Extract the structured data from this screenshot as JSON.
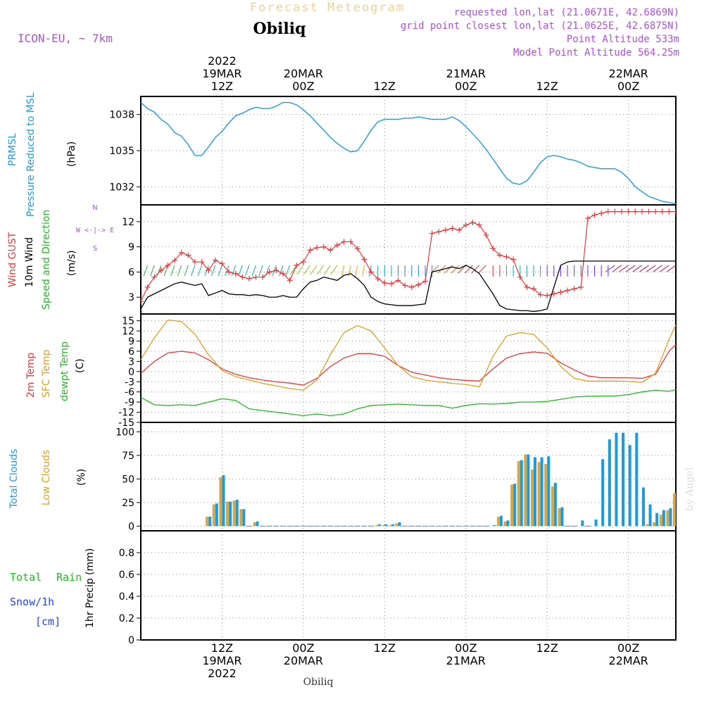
{
  "header": {
    "title": "Forecast Meteogram",
    "station": "Obiliq",
    "model": "ICON-EU, ~ 7km",
    "requested": "requested lon,lat (21.0671E, 42.6869N)",
    "grid_point": "grid point closest lon,lat (21.0625E, 42.6875N)",
    "point_alt": "Point Altitude 533m",
    "model_alt": "Model Point Altitude 564.25m",
    "watermark": "by Angel",
    "footer_station": "Obiliq"
  },
  "time_axis": {
    "top_labels": [
      {
        "hour": 12,
        "lines": [
          "2022",
          "19MAR",
          "12Z"
        ]
      },
      {
        "hour": 24,
        "lines": [
          "20MAR",
          "00Z"
        ]
      },
      {
        "hour": 36,
        "lines": [
          "12Z"
        ]
      },
      {
        "hour": 48,
        "lines": [
          "21MAR",
          "00Z"
        ]
      },
      {
        "hour": 60,
        "lines": [
          "12Z"
        ]
      },
      {
        "hour": 72,
        "lines": [
          "22MAR",
          "00Z"
        ]
      }
    ],
    "bottom_labels": [
      {
        "hour": 12,
        "lines": [
          "12Z",
          "19MAR",
          "2022"
        ]
      },
      {
        "hour": 24,
        "lines": [
          "00Z",
          "20MAR"
        ]
      },
      {
        "hour": 36,
        "lines": [
          "12Z"
        ]
      },
      {
        "hour": 48,
        "lines": [
          "00Z",
          "21MAR"
        ]
      },
      {
        "hour": 60,
        "lines": [
          "12Z"
        ]
      },
      {
        "hour": 72,
        "lines": [
          "00Z",
          "22MAR"
        ]
      }
    ]
  },
  "panel_labels": {
    "pressure": {
      "lines": [
        "PRMSL",
        "Pressure Reduced to MSL"
      ],
      "unit": "(hPa)"
    },
    "wind": {
      "gust": "Wind GUST",
      "wind": "10m Wind",
      "dir": "Speed and Direction",
      "unit": "(m/s)",
      "compass": [
        "N",
        "W  <-|->  E",
        "S"
      ]
    },
    "temp": {
      "t2m": "2m Temp",
      "sfc": "SFC Temp",
      "dew": "dewpt Temp",
      "unit": "(C)"
    },
    "clouds": {
      "total": "Total Clouds",
      "low": "Low Clouds",
      "unit": "(%)"
    },
    "precip": {
      "total": "Total",
      "rain": "Rain",
      "snow": "Snow/1h",
      "snow_unit": "[cm]",
      "axis": "1hr Precip (mm)"
    }
  },
  "colors": {
    "pressure": "#1e9be0",
    "gust": "#e8383c",
    "wind": "#000000",
    "t2m": "#e8383c",
    "sfc": "#e0a020",
    "dew": "#22bb22",
    "total_clouds": "#1e9be0",
    "low_clouds": "#d4a84a",
    "purple": "#b050d8",
    "title": "#f0d090"
  },
  "chart_data": [
    {
      "type": "line",
      "title": "PRMSL Pressure Reduced to MSL",
      "ylabel": "(hPa)",
      "ylim": [
        1030.5,
        1039.5
      ],
      "yticks": [
        1032,
        1035,
        1038
      ],
      "x_hours": [
        0,
        1,
        2,
        3,
        4,
        5,
        6,
        7,
        8,
        9,
        10,
        11,
        12,
        13,
        14,
        15,
        16,
        17,
        18,
        19,
        20,
        21,
        22,
        23,
        24,
        25,
        26,
        27,
        28,
        29,
        30,
        31,
        32,
        33,
        34,
        35,
        36,
        37,
        38,
        39,
        40,
        41,
        42,
        43,
        44,
        45,
        46,
        47,
        48,
        49,
        50,
        51,
        52,
        53,
        54,
        55,
        56,
        57,
        58,
        59,
        60,
        61,
        62,
        63,
        64,
        65,
        66,
        67,
        68,
        69,
        70,
        71,
        72,
        73,
        74,
        75,
        76,
        77,
        78,
        79
      ],
      "values": [
        1039.0,
        1038.5,
        1038.2,
        1037.6,
        1037.2,
        1036.5,
        1036.2,
        1035.5,
        1034.6,
        1034.6,
        1035.3,
        1036.1,
        1036.6,
        1037.3,
        1037.9,
        1038.1,
        1038.4,
        1038.6,
        1038.5,
        1038.5,
        1038.7,
        1039.0,
        1039.0,
        1038.8,
        1038.4,
        1037.9,
        1037.3,
        1036.7,
        1036.1,
        1035.6,
        1035.2,
        1034.9,
        1035.0,
        1035.8,
        1036.7,
        1037.4,
        1037.6,
        1037.6,
        1037.6,
        1037.7,
        1037.7,
        1037.8,
        1037.7,
        1037.6,
        1037.6,
        1037.6,
        1037.8,
        1037.5,
        1037.0,
        1036.4,
        1035.8,
        1035.1,
        1034.3,
        1033.5,
        1032.7,
        1032.3,
        1032.2,
        1032.5,
        1033.2,
        1034.0,
        1034.5,
        1034.6,
        1034.5,
        1034.3,
        1034.2,
        1034.0,
        1033.7,
        1033.6,
        1033.5,
        1033.5,
        1033.5,
        1033.2,
        1032.7,
        1032.0,
        1031.6,
        1031.2,
        1031.0,
        1030.8,
        1030.7,
        1030.6
      ],
      "series": [
        {
          "name": "PRMSL",
          "color": "#1e9be0"
        }
      ]
    },
    {
      "type": "line",
      "title": "Wind GUST / 10m Wind Speed and Direction",
      "ylabel": "(m/s)",
      "ylim": [
        1,
        14
      ],
      "yticks": [
        3,
        6,
        9,
        12
      ],
      "x_hours": [
        0,
        1,
        2,
        3,
        4,
        5,
        6,
        7,
        8,
        9,
        10,
        11,
        12,
        13,
        14,
        15,
        16,
        17,
        18,
        19,
        20,
        21,
        22,
        23,
        24,
        25,
        26,
        27,
        28,
        29,
        30,
        31,
        32,
        33,
        34,
        35,
        36,
        37,
        38,
        39,
        40,
        41,
        42,
        43,
        44,
        45,
        46,
        47,
        48,
        49,
        50,
        51,
        52,
        53,
        54,
        55,
        56,
        57,
        58,
        59,
        60,
        61,
        62,
        63,
        64,
        65,
        66,
        67,
        68,
        69,
        70,
        71,
        72,
        73,
        74,
        75,
        76,
        77,
        78,
        79
      ],
      "series": [
        {
          "name": "Wind GUST",
          "color": "#e8383c",
          "values": [
            2.5,
            4.2,
            5.4,
            6.2,
            6.8,
            7.4,
            8.3,
            8.0,
            7.2,
            7.2,
            6.2,
            7.4,
            7.0,
            6.0,
            5.8,
            5.4,
            5.2,
            5.4,
            5.4,
            6.0,
            6.2,
            5.8,
            5.0,
            6.8,
            7.2,
            8.6,
            8.9,
            9.0,
            8.6,
            9.2,
            9.6,
            9.6,
            8.8,
            7.5,
            6.0,
            5.2,
            4.7,
            4.6,
            5.0,
            4.4,
            4.2,
            4.5,
            4.9,
            10.6,
            10.8,
            11.0,
            11.2,
            11.0,
            11.6,
            11.9,
            11.6,
            10.4,
            8.8,
            8.0,
            7.8,
            7.5,
            5.4,
            4.2,
            4.0,
            3.3,
            3.2,
            3.4,
            3.6,
            3.8,
            4.0,
            4.2,
            12.4,
            12.8,
            13.0,
            13.2,
            13.2,
            13.2,
            13.2,
            13.2,
            13.2,
            13.2,
            13.2,
            13.2,
            13.2,
            13.2
          ]
        },
        {
          "name": "10m Wind",
          "color": "#000000",
          "values": [
            1.6,
            3.0,
            3.4,
            3.8,
            4.2,
            4.6,
            4.8,
            4.6,
            4.4,
            4.6,
            3.2,
            3.5,
            3.8,
            3.4,
            3.3,
            3.3,
            3.2,
            3.3,
            3.2,
            3.0,
            3.0,
            3.2,
            3.0,
            3.0,
            4.0,
            4.8,
            5.0,
            5.4,
            5.2,
            5.0,
            5.6,
            5.8,
            5.2,
            4.4,
            3.0,
            2.5,
            2.2,
            2.1,
            2.0,
            2.0,
            2.0,
            2.1,
            2.2,
            6.0,
            6.2,
            6.4,
            6.6,
            6.4,
            6.8,
            6.4,
            5.8,
            4.6,
            3.4,
            2.0,
            1.6,
            1.5,
            1.4,
            1.4,
            1.3,
            1.4,
            1.6,
            4.2,
            6.8,
            7.2,
            7.3,
            7.3,
            7.3,
            7.3,
            7.3,
            7.3,
            7.3,
            7.3,
            7.3,
            7.3,
            7.3,
            7.3,
            7.3,
            7.3,
            7.3,
            7.3
          ]
        }
      ]
    },
    {
      "type": "line",
      "title": "2m Temp / SFC Temp / dewpt Temp",
      "ylabel": "(C)",
      "ylim": [
        -15,
        17
      ],
      "yticks": [
        -15,
        -12,
        -9,
        -6,
        -3,
        0,
        3,
        6,
        9,
        12,
        15
      ],
      "x_hours": [
        0,
        2,
        4,
        6,
        8,
        10,
        12,
        14,
        16,
        18,
        20,
        22,
        24,
        26,
        28,
        30,
        32,
        34,
        36,
        38,
        40,
        42,
        44,
        46,
        48,
        50,
        52,
        54,
        56,
        58,
        60,
        62,
        64,
        66,
        68,
        70,
        72,
        74,
        76,
        78,
        79
      ],
      "series": [
        {
          "name": "2m Temp",
          "color": "#e8383c",
          "values": [
            -0.5,
            3.0,
            5.5,
            6.0,
            5.5,
            3.5,
            0.8,
            -0.8,
            -1.8,
            -2.5,
            -3.0,
            -3.4,
            -4.0,
            -2.0,
            1.5,
            4.0,
            5.3,
            5.3,
            4.5,
            1.8,
            -0.2,
            -1.0,
            -1.8,
            -2.3,
            -2.6,
            -2.8,
            0.8,
            4.0,
            5.3,
            5.8,
            5.4,
            2.6,
            0.5,
            -1.3,
            -1.8,
            -1.8,
            -1.8,
            -2.0,
            -0.8,
            6.0,
            8.0
          ]
        },
        {
          "name": "SFC Temp",
          "color": "#e0a020",
          "values": [
            3.5,
            10.0,
            15.2,
            14.8,
            11.0,
            5.0,
            0.3,
            -1.5,
            -2.5,
            -3.5,
            -4.2,
            -5.0,
            -5.5,
            -2.5,
            5.0,
            11.5,
            13.6,
            12.0,
            7.0,
            1.8,
            -1.5,
            -2.5,
            -3.0,
            -3.5,
            -3.8,
            -4.5,
            4.5,
            10.5,
            11.5,
            11.0,
            7.0,
            1.5,
            -2.0,
            -2.8,
            -2.8,
            -2.8,
            -2.9,
            -3.2,
            -0.5,
            9.5,
            13.8
          ]
        },
        {
          "name": "dewpt Temp",
          "color": "#22bb22",
          "values": [
            -7.6,
            -9.8,
            -10.0,
            -9.8,
            -10.0,
            -9.0,
            -8.0,
            -8.5,
            -11.0,
            -11.5,
            -12.0,
            -12.5,
            -13.0,
            -12.5,
            -13.0,
            -12.5,
            -11.0,
            -10.0,
            -9.8,
            -9.6,
            -9.8,
            -10.0,
            -10.0,
            -10.8,
            -10.0,
            -9.5,
            -9.6,
            -9.4,
            -9.0,
            -9.0,
            -8.8,
            -8.2,
            -7.5,
            -7.3,
            -7.2,
            -7.2,
            -6.8,
            -6.0,
            -5.5,
            -5.8,
            -5.3
          ]
        }
      ]
    },
    {
      "type": "bar",
      "title": "Total Clouds / Low Clouds",
      "ylabel": "(%)",
      "ylim": [
        -5,
        110
      ],
      "yticks": [
        0,
        25,
        50,
        75,
        100
      ],
      "x_hours": [
        10,
        11,
        12,
        13,
        14,
        15,
        16,
        17,
        18,
        19,
        20,
        21,
        22,
        23,
        24,
        25,
        26,
        27,
        28,
        29,
        30,
        31,
        32,
        33,
        34,
        35,
        36,
        37,
        38,
        39,
        40,
        41,
        42,
        43,
        44,
        45,
        46,
        47,
        48,
        49,
        50,
        51,
        52,
        53,
        54,
        55,
        56,
        57,
        58,
        59,
        60,
        61,
        62,
        63,
        64,
        65,
        66,
        67,
        68,
        69,
        70,
        71,
        72,
        73,
        74,
        75,
        76,
        77,
        78,
        79
      ],
      "series": [
        {
          "name": "Total Clouds",
          "color": "#1e9be0",
          "values": [
            10,
            24,
            54,
            26,
            28,
            18,
            0,
            5,
            0,
            0,
            0,
            0,
            0,
            0,
            0,
            0,
            0,
            0,
            0,
            0,
            0,
            0,
            0,
            0,
            0,
            2,
            2,
            2,
            4,
            0,
            0,
            0,
            0,
            0,
            0,
            0,
            0,
            0,
            0,
            0,
            0,
            0,
            1,
            11,
            6,
            45,
            70,
            76,
            73,
            73,
            74,
            46,
            20,
            0,
            0,
            6,
            0,
            7,
            71,
            92,
            99,
            99,
            86,
            99,
            41,
            23,
            14,
            17,
            19,
            35
          ]
        },
        {
          "name": "Low Clouds",
          "color": "#d4a84a",
          "values": [
            10,
            23,
            52,
            26,
            27,
            18,
            0,
            4,
            0,
            0,
            0,
            0,
            0,
            0,
            0,
            0,
            0,
            0,
            0,
            0,
            0,
            0,
            0,
            0,
            0,
            1,
            1,
            1,
            3,
            0,
            0,
            0,
            0,
            0,
            0,
            0,
            0,
            0,
            0,
            0,
            0,
            0,
            0,
            10,
            5,
            44,
            69,
            76,
            60,
            68,
            66,
            42,
            19,
            0,
            0,
            0,
            0,
            0,
            0,
            0,
            0,
            0,
            0,
            0,
            0,
            2,
            4,
            12,
            17,
            35
          ]
        }
      ]
    },
    {
      "type": "line",
      "title": "1hr Precip (mm)",
      "ylabel": "1hr Precip (mm)",
      "ylim": [
        0,
        1
      ],
      "yticks": [
        0,
        0.2,
        0.4,
        0.6,
        0.8
      ],
      "x_hours": [
        0,
        79
      ],
      "series": [
        {
          "name": "Total Rain",
          "color": "#22bb22",
          "values": [
            0,
            0
          ]
        },
        {
          "name": "Snow/1h",
          "color": "#2244ee",
          "values": [
            0,
            0
          ]
        }
      ]
    }
  ]
}
